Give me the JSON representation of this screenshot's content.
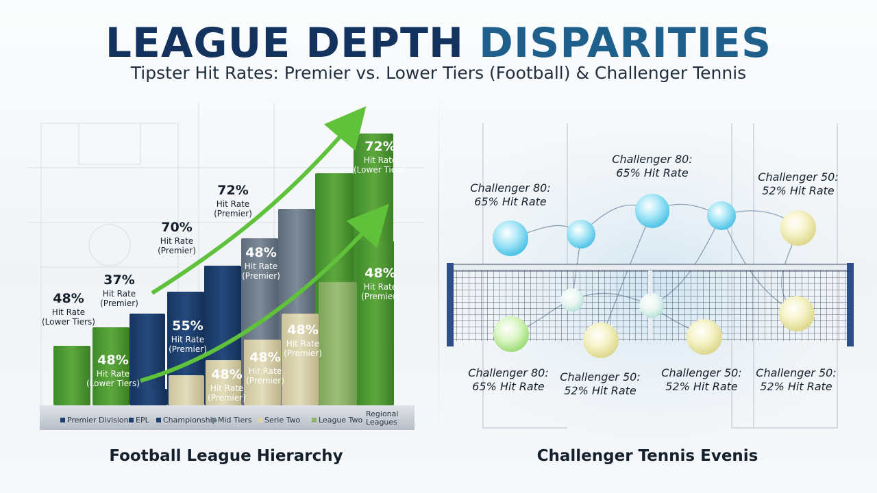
{
  "header": {
    "title_part1": "LEAGUE DEPTH",
    "title_part2": "DISPARITIES",
    "subtitle": "Tipster Hit Rates: Premier vs. Lower Tiers (Football) & Challenger Tennis"
  },
  "colors": {
    "title_dark": "#14325e",
    "title_accent": "#1e5f8c",
    "turf_green": "#4f9a36",
    "navy": "#1d3f6e",
    "slate": "#6f7d8c",
    "beige": "#d9d2ad",
    "sage": "#8fb36a",
    "arrow_green": "#5fc23a",
    "ball_blue": "#7fd8f2",
    "ball_yellow": "#f2efb4",
    "ball_green": "#c9f0a8"
  },
  "chart_data": [
    {
      "type": "bar",
      "title": "Football League Hierarchy",
      "legend": [
        "Premier Divisions",
        "EPL",
        "Championship",
        "Mid Tiers",
        "Serie Two",
        "League Two",
        "Regional Leagues"
      ],
      "legend_placement": "bottom",
      "bars": [
        {
          "group": "turf",
          "value": 48,
          "label": [
            "48%",
            "Hit Rate",
            "(Lower Tiers)"
          ]
        },
        {
          "group": "turf",
          "value": 37,
          "label": [
            "37%",
            "Hit Rate",
            "(Premier)"
          ]
        },
        {
          "group": "navy",
          "value": 70,
          "label": [
            "70%",
            "Hit Rate",
            "(Premier)"
          ]
        },
        {
          "group": "navy",
          "value": 55,
          "label": [
            "55%",
            "Hit Rate",
            "(Premier)"
          ]
        },
        {
          "group": "navy",
          "value": 72,
          "label": [
            "72%",
            "Hit Rate",
            "(Premier)"
          ]
        },
        {
          "group": "slate",
          "value": 48,
          "label": [
            "48%",
            "Hit Rate",
            "(Premier)"
          ]
        },
        {
          "group": "slate",
          "value": null,
          "label": []
        },
        {
          "group": "turf",
          "value": 72,
          "label": [
            "72%",
            "Hit Rate",
            "(Lower Tiers)"
          ]
        }
      ],
      "front_bars": [
        {
          "group": "turf",
          "value": 48,
          "label": [
            "48%",
            "Hit Rate",
            "(Lower Tiers)"
          ]
        },
        {
          "group": "navy",
          "value": null,
          "label": []
        },
        {
          "group": "beige",
          "value": null,
          "label": []
        },
        {
          "group": "beige",
          "value": 48,
          "label": [
            "48%",
            "Hit Rate",
            "(Premier)"
          ]
        },
        {
          "group": "beige",
          "value": 48,
          "label": [
            "48%",
            "Hit Rate",
            "(Premier)"
          ]
        },
        {
          "group": "beige",
          "value": 48,
          "label": [
            "48%",
            "Hit Rate",
            "(Premier)"
          ]
        },
        {
          "group": "sage",
          "value": null,
          "label": []
        },
        {
          "group": "turf",
          "value": 48,
          "label": [
            "48%",
            "Hit Rate",
            "(Premier)"
          ]
        }
      ]
    },
    {
      "type": "scatter",
      "title": "Challenger Tennis Evenis",
      "points": [
        {
          "event": "Challenger 80",
          "hit_rate": 65,
          "label": [
            "Challenger 80:",
            "65% Hit Rate"
          ],
          "color": "blue"
        },
        {
          "event": "Challenger 80",
          "hit_rate": 65,
          "label": [
            "Challenger 80:",
            "65% Hit Rate"
          ],
          "color": "blue"
        },
        {
          "event": "Challenger 50",
          "hit_rate": 52,
          "label": [
            "Challenger 50:",
            "52% Hit Rate"
          ],
          "color": "yellow"
        },
        {
          "event": "Challenger 80",
          "hit_rate": 65,
          "label": [
            "Challenger 80:",
            "65% Hit Rate"
          ],
          "color": "green"
        },
        {
          "event": "Challenger 50",
          "hit_rate": 52,
          "label": [
            "Challenger 50:",
            "52% Hit Rate"
          ],
          "color": "yellow"
        },
        {
          "event": "Challenger 50",
          "hit_rate": 52,
          "label": [
            "Challenger 50:",
            "52% Hit Rate"
          ],
          "color": "yellow"
        },
        {
          "event": "Challenger 50",
          "hit_rate": 52,
          "label": [
            "Challenger 50:",
            "52% Hit Rate"
          ],
          "color": "yellow"
        }
      ]
    }
  ]
}
